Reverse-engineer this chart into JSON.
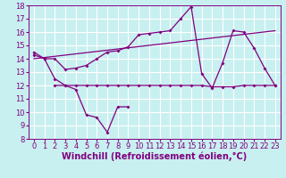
{
  "xlabel": "Windchill (Refroidissement éolien,°C)",
  "ylabel": "",
  "xlim": [
    -0.5,
    23.5
  ],
  "ylim": [
    8,
    18
  ],
  "yticks": [
    8,
    9,
    10,
    11,
    12,
    13,
    14,
    15,
    16,
    17,
    18
  ],
  "xticks": [
    0,
    1,
    2,
    3,
    4,
    5,
    6,
    7,
    8,
    9,
    10,
    11,
    12,
    13,
    14,
    15,
    16,
    17,
    18,
    19,
    20,
    21,
    22,
    23
  ],
  "background_color": "#c8f0f0",
  "grid_color": "#ffffff",
  "line_color": "#800080",
  "line1_x": [
    0,
    1,
    2,
    3,
    4,
    5,
    6,
    7,
    8,
    9
  ],
  "line1_y": [
    14.5,
    14.0,
    12.5,
    12.0,
    11.7,
    9.8,
    9.6,
    8.5,
    10.4,
    10.4
  ],
  "line2_x": [
    0,
    1,
    2,
    3,
    4,
    5,
    6,
    7,
    8,
    9,
    10,
    11,
    12,
    13,
    14,
    15,
    16,
    17,
    18,
    19,
    20,
    21,
    22,
    23
  ],
  "line2_y": [
    14.3,
    14.0,
    14.0,
    13.2,
    13.3,
    13.5,
    14.0,
    14.5,
    14.6,
    14.9,
    15.8,
    15.9,
    16.0,
    16.1,
    17.0,
    17.9,
    12.9,
    11.8,
    13.7,
    16.1,
    16.0,
    14.8,
    13.3,
    12.0
  ],
  "line3_x": [
    2,
    3,
    4,
    5,
    6,
    7,
    8,
    9,
    10,
    11,
    12,
    13,
    14,
    15,
    16,
    17,
    18,
    19,
    20,
    21,
    22,
    23
  ],
  "line3_y": [
    12.0,
    12.0,
    12.0,
    12.0,
    12.0,
    12.0,
    12.0,
    12.0,
    12.0,
    12.0,
    12.0,
    12.0,
    12.0,
    12.0,
    12.0,
    11.9,
    11.9,
    11.9,
    12.0,
    12.0,
    12.0,
    12.0
  ],
  "line4_x": [
    0,
    23
  ],
  "line4_y": [
    14.0,
    16.1
  ],
  "font_color": "#800080",
  "tick_fontsize": 6,
  "label_fontsize": 7,
  "marker": "D",
  "markersize": 2,
  "linewidth": 0.9
}
